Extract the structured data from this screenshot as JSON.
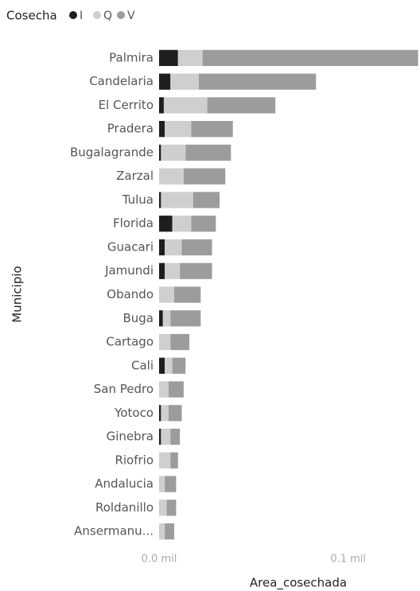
{
  "chart_data": {
    "type": "stacked_barh",
    "legend_title": "Cosecha",
    "y_label": "Municipio",
    "x_label": "Area_cosechada",
    "categories": [
      "Palmira",
      "Candelaria",
      "El Cerrito",
      "Pradera",
      "Bugalagrande",
      "Zarzal",
      "Tulua",
      "Florida",
      "Guacari",
      "Jamundi",
      "Obando",
      "Buga",
      "Cartago",
      "Cali",
      "San Pedro",
      "Yotoco",
      "Ginebra",
      "Riofrio",
      "Andalucia",
      "Roldanillo",
      "Ansermanu..."
    ],
    "series": [
      {
        "name": "I",
        "color": "#1e1e1e",
        "values": [
          0.01,
          0.006,
          0.0025,
          0.003,
          0.001,
          0,
          0.001,
          0.007,
          0.003,
          0.003,
          0,
          0.002,
          0,
          0.003,
          0,
          0.001,
          0.001,
          0,
          0,
          0,
          0
        ]
      },
      {
        "name": "Q",
        "color": "#cfcfcf",
        "values": [
          0.013,
          0.015,
          0.023,
          0.014,
          0.013,
          0.013,
          0.017,
          0.01,
          0.009,
          0.008,
          0.008,
          0.004,
          0.006,
          0.004,
          0.005,
          0.004,
          0.005,
          0.006,
          0.003,
          0.004,
          0.003
        ]
      },
      {
        "name": "V",
        "color": "#9c9c9c",
        "values": [
          0.114,
          0.062,
          0.036,
          0.022,
          0.024,
          0.022,
          0.014,
          0.013,
          0.016,
          0.017,
          0.014,
          0.016,
          0.01,
          0.007,
          0.008,
          0.007,
          0.005,
          0.004,
          0.006,
          0.005,
          0.005
        ]
      }
    ],
    "xlim": [
      0,
      0.138
    ],
    "xticks": [
      {
        "value": 0,
        "label": "0.0 mil"
      },
      {
        "value": 0.1,
        "label": "0.1 mil"
      }
    ]
  }
}
